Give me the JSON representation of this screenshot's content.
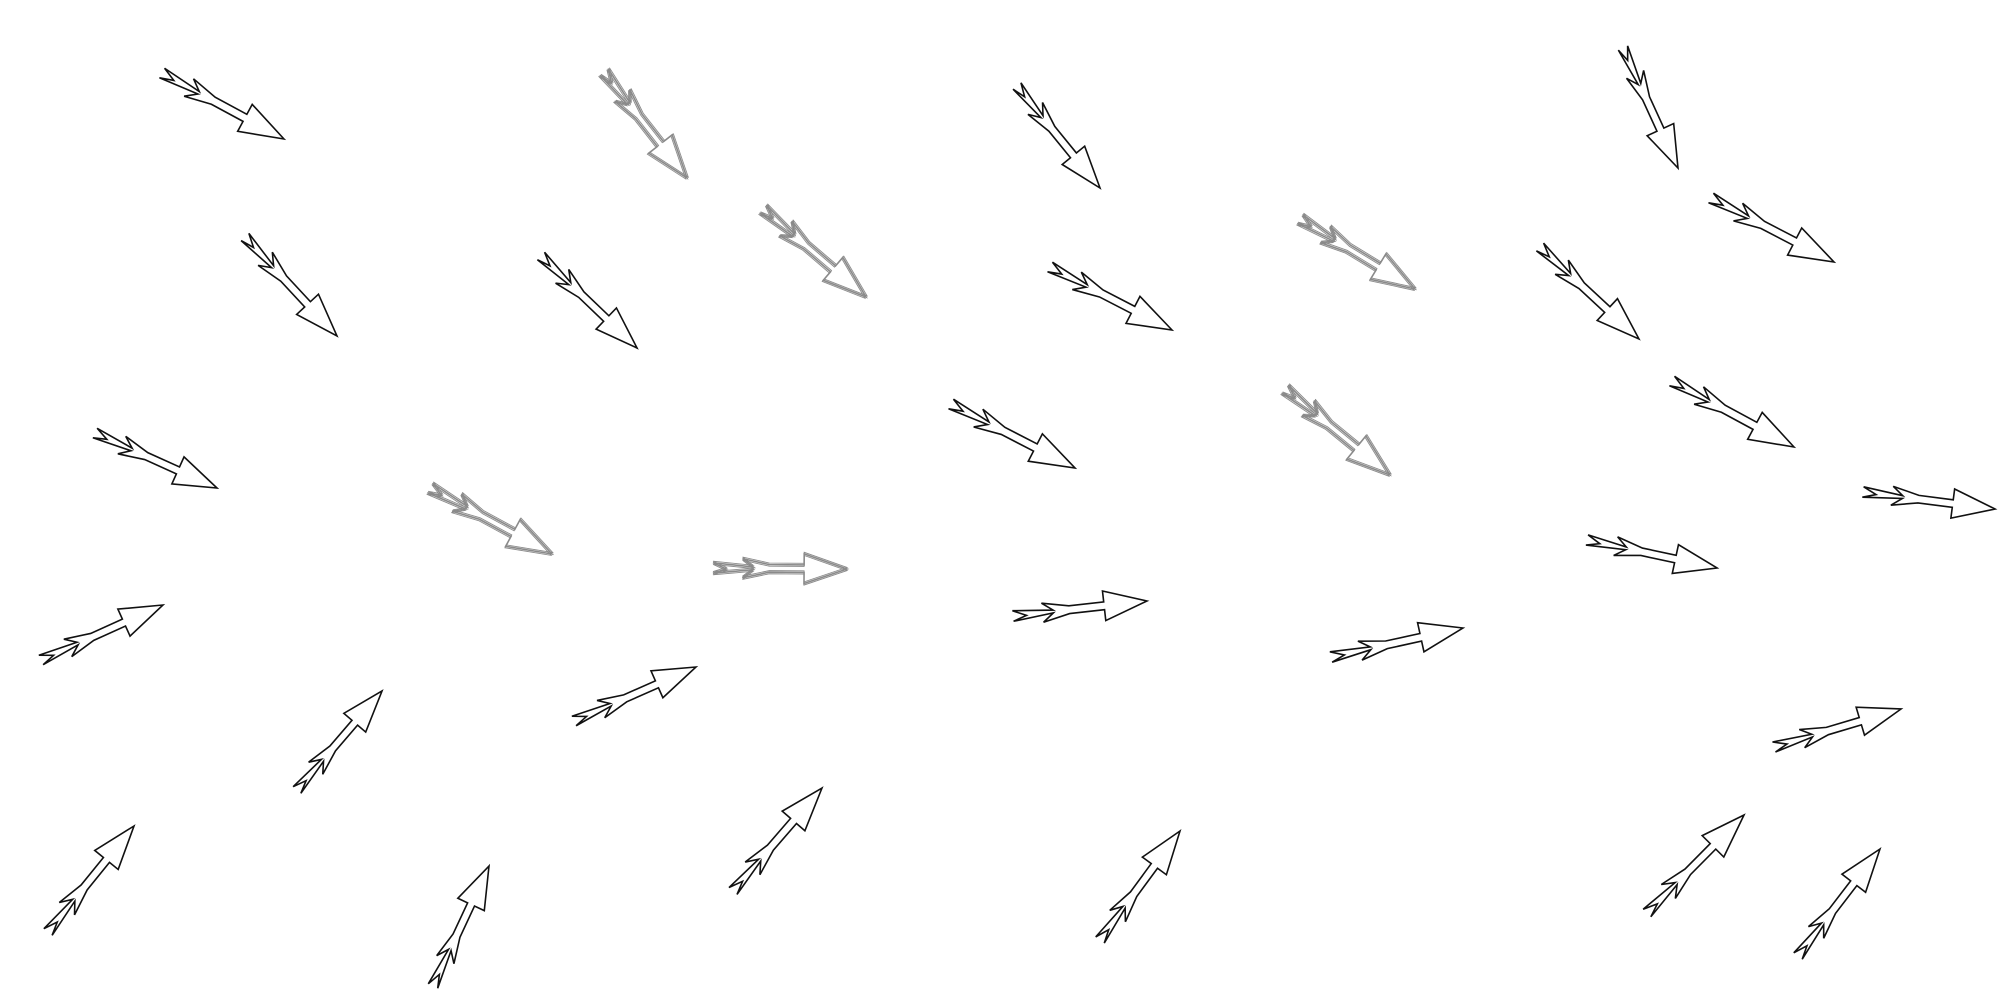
{
  "diagram": {
    "background": "#ffffff",
    "arrow_colors": {
      "solid": "#111111",
      "faded": "#8a8a8a"
    },
    "arrow_count": 32,
    "arrow_icon": "outlined-lightning-arrow-icon",
    "styles": [
      "solid",
      "faded",
      "solid",
      "solid",
      "solid",
      "solid",
      "solid",
      "faded",
      "solid",
      "faded",
      "solid",
      "solid",
      "faded",
      "solid",
      "faded",
      "solid",
      "solid",
      "faded",
      "solid",
      "solid",
      "solid",
      "solid",
      "solid",
      "solid",
      "solid",
      "solid",
      "solid",
      "solid",
      "solid",
      "solid",
      "solid",
      "solid"
    ]
  }
}
